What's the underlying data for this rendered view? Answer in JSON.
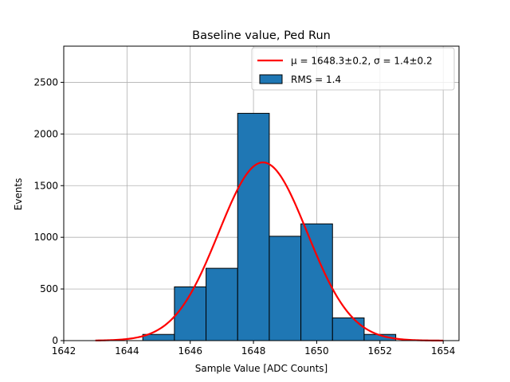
{
  "chart_data": {
    "type": "bar",
    "title": "Baseline value, Ped Run",
    "xlabel": "Sample Value [ADC Counts]",
    "ylabel": "Events",
    "xlim": [
      1642,
      1654.5
    ],
    "ylim": [
      0,
      2850
    ],
    "x_ticks": [
      1642,
      1644,
      1646,
      1648,
      1650,
      1652,
      1654
    ],
    "y_ticks": [
      0,
      500,
      1000,
      1500,
      2000,
      2500
    ],
    "grid": true,
    "legend_position": "top-right",
    "histogram": {
      "name": "RMS = 1.4",
      "color": "#1f77b4",
      "bins": [
        {
          "left": 1644.5,
          "right": 1645.5,
          "count": 60
        },
        {
          "left": 1645.5,
          "right": 1646.5,
          "count": 520
        },
        {
          "left": 1646.5,
          "right": 1647.5,
          "count": 700
        },
        {
          "left": 1647.5,
          "right": 1648.5,
          "count": 2200
        },
        {
          "left": 1648.5,
          "right": 1649.5,
          "count": 1010
        },
        {
          "left": 1649.5,
          "right": 1650.5,
          "count": 1130
        },
        {
          "left": 1650.5,
          "right": 1651.5,
          "count": 220
        },
        {
          "left": 1651.5,
          "right": 1652.5,
          "count": 60
        }
      ]
    },
    "fit": {
      "name": "μ = 1648.3±0.2, σ = 1.4±0.2",
      "color": "#ff0000",
      "mu": 1648.3,
      "sigma": 1.4,
      "amplitude": 1725,
      "x_range": [
        1643,
        1654
      ]
    }
  }
}
